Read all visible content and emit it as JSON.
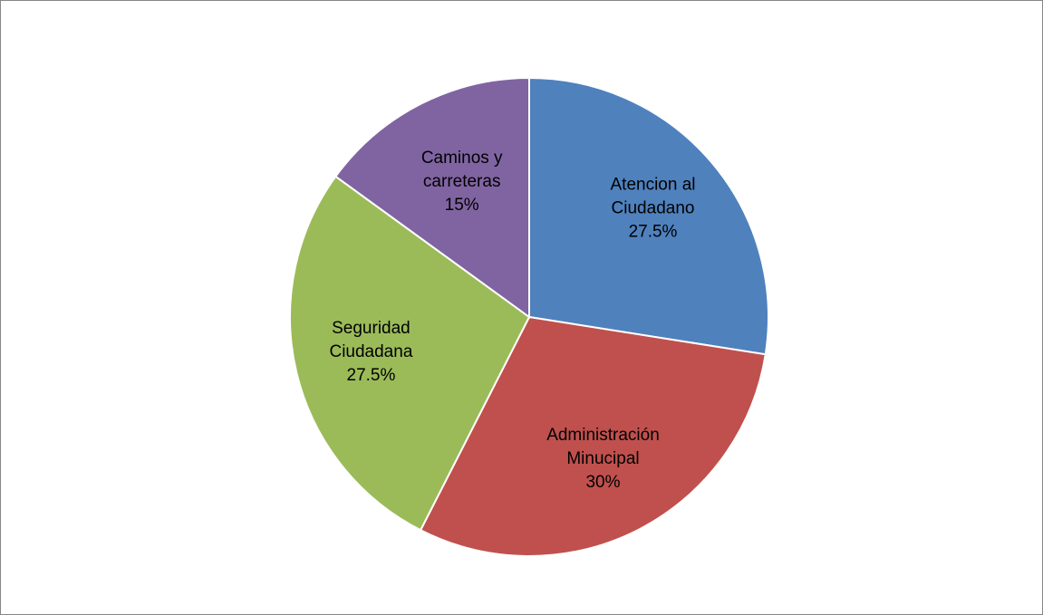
{
  "chart_data": {
    "type": "pie",
    "categories": [
      "Atencion al Ciudadano",
      "Administración Minucipal",
      "Seguridad Ciudadana",
      "Caminos y carreteras"
    ],
    "values": [
      27.5,
      30,
      27.5,
      15
    ],
    "value_labels": [
      "27.5%",
      "30%",
      "27.5%",
      "15%"
    ],
    "colors": [
      "#4f81bd",
      "#c0504d",
      "#9bbb59",
      "#8064a2"
    ]
  }
}
